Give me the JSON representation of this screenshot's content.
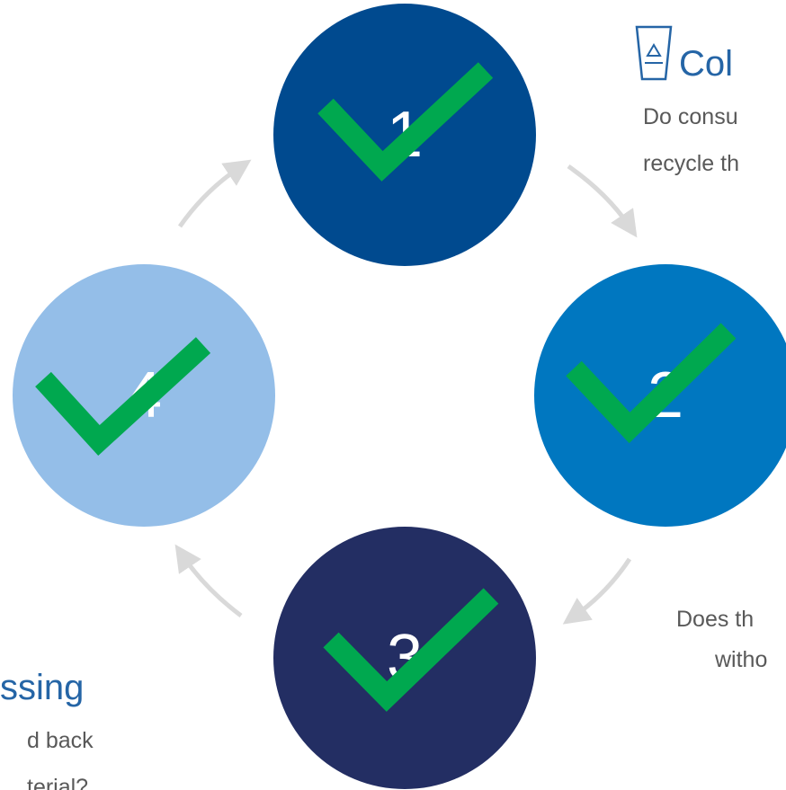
{
  "steps": [
    {
      "number": "1"
    },
    {
      "number": "2"
    },
    {
      "number": "3"
    },
    {
      "number": "4"
    }
  ],
  "collection": {
    "title": "Col",
    "lines": [
      "Do consu",
      "recycle th"
    ]
  },
  "sorting": {
    "lines": [
      "Does th",
      "witho"
    ]
  },
  "processing": {
    "title": "ssing",
    "lines": [
      "d back",
      "terial?"
    ]
  }
}
